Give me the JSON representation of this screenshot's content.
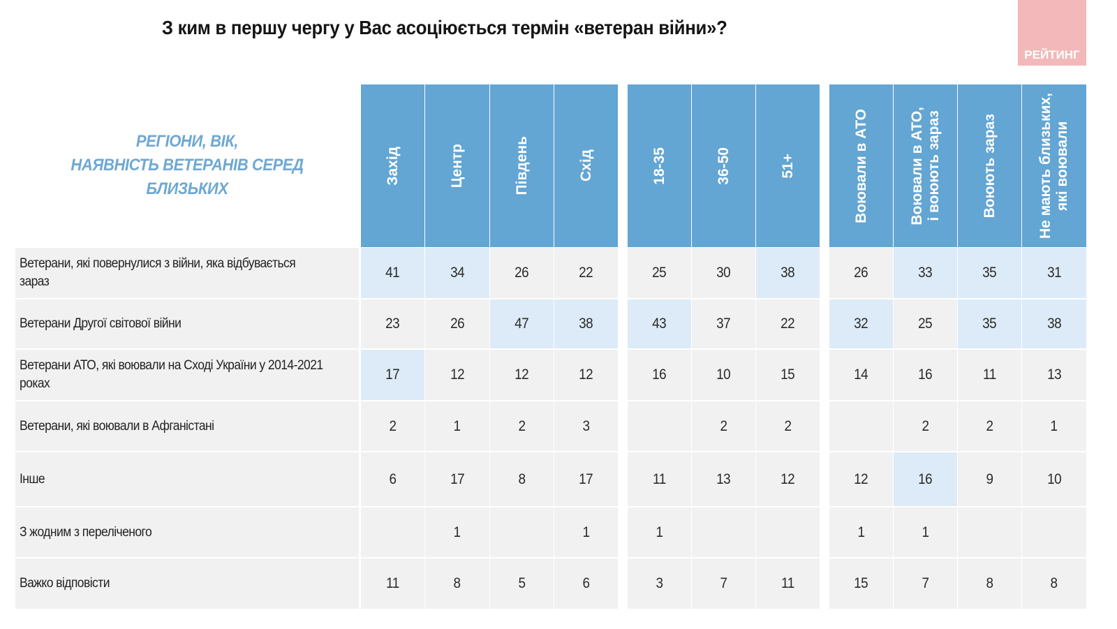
{
  "title": "З ким в першу чергу у Вас асоціюється термін «ветеран війни»?",
  "logo": {
    "text": "РЕЙТИНГ",
    "icon": "rating-logo",
    "color": "#f2b8ba"
  },
  "group_caption": [
    "РЕГІОНИ, ВІК,",
    "НАЯВНІСТЬ ВЕТЕРАНІВ СЕРЕД",
    "БЛИЗЬКИХ"
  ],
  "colors": {
    "header_blue": "#63a5d3",
    "caption_blue": "#6fa8d2",
    "cell_gray": "#f1f1f1",
    "highlight_blue": "#dcebf7"
  },
  "columns": [
    {
      "group": "regions",
      "label": "Захід"
    },
    {
      "group": "regions",
      "label": "Центр"
    },
    {
      "group": "regions",
      "label": "Південь"
    },
    {
      "group": "regions",
      "label": "Схід"
    },
    {
      "group": "age",
      "label": "18-35"
    },
    {
      "group": "age",
      "label": "36-50"
    },
    {
      "group": "age",
      "label": "51+"
    },
    {
      "group": "veterans",
      "label": "Воювали в АТО"
    },
    {
      "group": "veterans",
      "label": "Воювали в АТО,\nі воюють зараз"
    },
    {
      "group": "veterans",
      "label": "Воюють зараз"
    },
    {
      "group": "veterans",
      "label": "Не мають близьких,\nякі воювали"
    }
  ],
  "rows": [
    {
      "label": "Ветерани, які повернулися з війни, яка відбувається зараз",
      "values": [
        "41",
        "34",
        "26",
        "22",
        "25",
        "30",
        "38",
        "26",
        "33",
        "35",
        "31"
      ],
      "highlight": [
        true,
        true,
        false,
        false,
        false,
        false,
        true,
        false,
        true,
        true,
        true
      ]
    },
    {
      "label": "Ветерани Другої світової війни",
      "values": [
        "23",
        "26",
        "47",
        "38",
        "43",
        "37",
        "22",
        "32",
        "25",
        "35",
        "38"
      ],
      "highlight": [
        false,
        false,
        true,
        true,
        true,
        false,
        false,
        true,
        false,
        true,
        true
      ]
    },
    {
      "label": "Ветерани АТО, які воювали на Сході України у 2014-2021 роках",
      "values": [
        "17",
        "12",
        "12",
        "12",
        "16",
        "10",
        "15",
        "14",
        "16",
        "11",
        "13"
      ],
      "highlight": [
        true,
        false,
        false,
        false,
        false,
        false,
        false,
        false,
        false,
        false,
        false
      ]
    },
    {
      "label": "Ветерани, які воювали в Афганістані",
      "values": [
        "2",
        "1",
        "2",
        "3",
        "",
        "2",
        "2",
        "",
        "2",
        "2",
        "1"
      ],
      "highlight": [
        false,
        false,
        false,
        false,
        false,
        false,
        false,
        false,
        false,
        false,
        false
      ]
    },
    {
      "label": "Інше",
      "values": [
        "6",
        "17",
        "8",
        "17",
        "11",
        "13",
        "12",
        "12",
        "16",
        "9",
        "10"
      ],
      "highlight": [
        false,
        false,
        false,
        false,
        false,
        false,
        false,
        false,
        true,
        false,
        false
      ]
    },
    {
      "label": "З жодним з переліченого",
      "values": [
        "",
        "1",
        "",
        "1",
        "1",
        "",
        "",
        "1",
        "1",
        "",
        ""
      ],
      "highlight": [
        false,
        false,
        false,
        false,
        false,
        false,
        false,
        false,
        false,
        false,
        false
      ]
    },
    {
      "label": "Важко відповісти",
      "values": [
        "11",
        "8",
        "5",
        "6",
        "3",
        "7",
        "11",
        "15",
        "7",
        "8",
        "8"
      ],
      "highlight": [
        false,
        false,
        false,
        false,
        false,
        false,
        false,
        false,
        false,
        false,
        false
      ]
    }
  ],
  "chart_data": {
    "type": "table",
    "title": "З ким в першу чергу у Вас асоціюється термін «ветеран війни»?",
    "row_header": "РЕГІОНИ, ВІК, НАЯВНІСТЬ ВЕТЕРАНІВ СЕРЕД БЛИЗЬКИХ",
    "column_groups": [
      {
        "name": "Регіони",
        "columns": [
          "Захід",
          "Центр",
          "Південь",
          "Схід"
        ]
      },
      {
        "name": "Вік",
        "columns": [
          "18-35",
          "36-50",
          "51+"
        ]
      },
      {
        "name": "Наявність ветеранів серед близьких",
        "columns": [
          "Воювали в АТО",
          "Воювали в АТО, і воюють зараз",
          "Воюють зараз",
          "Не мають близьких, які воювали"
        ]
      }
    ],
    "categories": [
      "Захід",
      "Центр",
      "Південь",
      "Схід",
      "18-35",
      "36-50",
      "51+",
      "Воювали в АТО",
      "Воювали в АТО, і воюють зараз",
      "Воюють зараз",
      "Не мають близьких, які воювали"
    ],
    "series": [
      {
        "name": "Ветерани, які повернулися з війни, яка відбувається зараз",
        "values": [
          41,
          34,
          26,
          22,
          25,
          30,
          38,
          26,
          33,
          35,
          31
        ]
      },
      {
        "name": "Ветерани Другої світової війни",
        "values": [
          23,
          26,
          47,
          38,
          43,
          37,
          22,
          32,
          25,
          35,
          38
        ]
      },
      {
        "name": "Ветерани АТО, які воювали на Сході України у 2014-2021 роках",
        "values": [
          17,
          12,
          12,
          12,
          16,
          10,
          15,
          14,
          16,
          11,
          13
        ]
      },
      {
        "name": "Ветерани, які воювали в Афганістані",
        "values": [
          2,
          1,
          2,
          3,
          null,
          2,
          2,
          null,
          2,
          2,
          1
        ]
      },
      {
        "name": "Інше",
        "values": [
          6,
          17,
          8,
          17,
          11,
          13,
          12,
          12,
          16,
          9,
          10
        ]
      },
      {
        "name": "З жодним з переліченого",
        "values": [
          null,
          1,
          null,
          1,
          1,
          null,
          null,
          1,
          1,
          null,
          null
        ]
      },
      {
        "name": "Важко відповісти",
        "values": [
          11,
          8,
          5,
          6,
          3,
          7,
          11,
          15,
          7,
          8,
          8
        ]
      }
    ],
    "unit": "%",
    "highlighted_cells_color": "#dcebf7"
  }
}
